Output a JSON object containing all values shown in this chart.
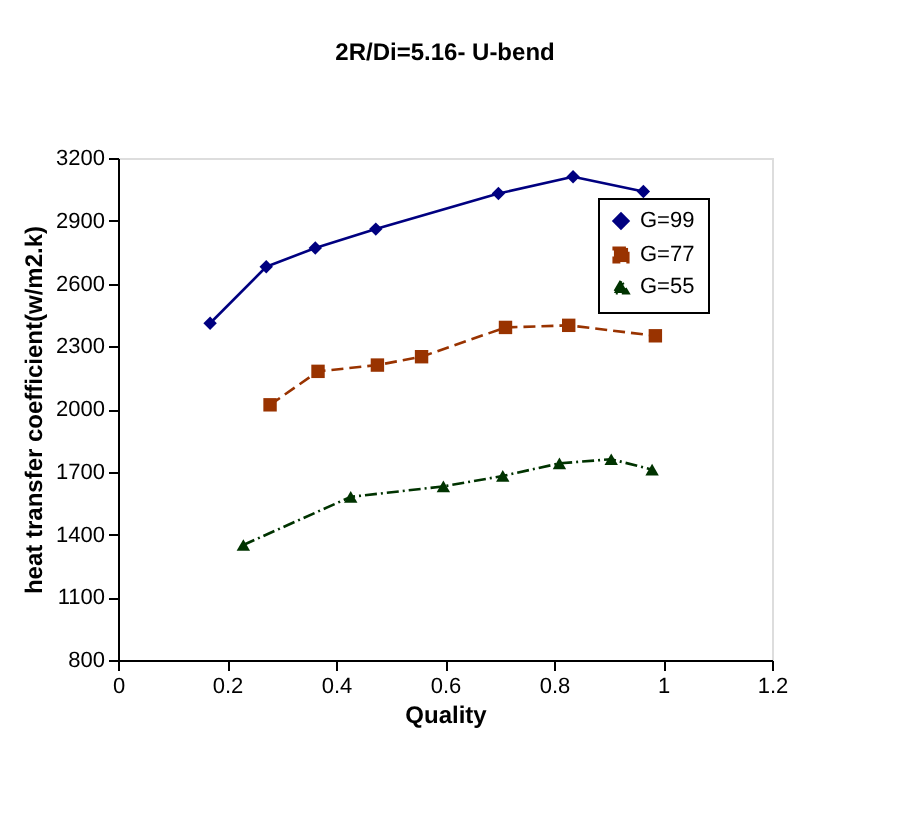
{
  "chart_data": {
    "type": "line",
    "title": "2R/Di=5.16- U-bend",
    "xlabel": "Quality",
    "ylabel": "heat transfer coefficient(w/m2.k)",
    "xlim": [
      0,
      1.2
    ],
    "xticks": [
      0,
      0.2,
      0.4,
      0.6,
      0.8,
      1,
      1.2
    ],
    "ylim": [
      800,
      3200
    ],
    "yticks": [
      800,
      1100,
      1400,
      1700,
      2000,
      2300,
      2600,
      2900,
      3200
    ],
    "grid": false,
    "legend": "top right",
    "series": [
      {
        "name": "G=99",
        "color": "#000080",
        "marker": "diamond",
        "line_style": "solid",
        "x": [
          0.169,
          0.272,
          0.362,
          0.473,
          0.698,
          0.835,
          0.964
        ],
        "values": [
          2410,
          2680,
          2770,
          2860,
          3030,
          3110,
          3040
        ]
      },
      {
        "name": "G=77",
        "color": "#993300",
        "marker": "square",
        "line_style": "dashed",
        "x": [
          0.279,
          0.367,
          0.476,
          0.557,
          0.711,
          0.827,
          0.986
        ],
        "values": [
          2020,
          2180,
          2210,
          2250,
          2390,
          2400,
          2350
        ]
      },
      {
        "name": "G=55",
        "color": "#003300",
        "marker": "triangle",
        "line_style": "dotted",
        "x": [
          0.23,
          0.427,
          0.597,
          0.706,
          0.81,
          0.905,
          0.98
        ],
        "values": [
          1350,
          1580,
          1630,
          1680,
          1740,
          1760,
          1710
        ]
      }
    ]
  }
}
